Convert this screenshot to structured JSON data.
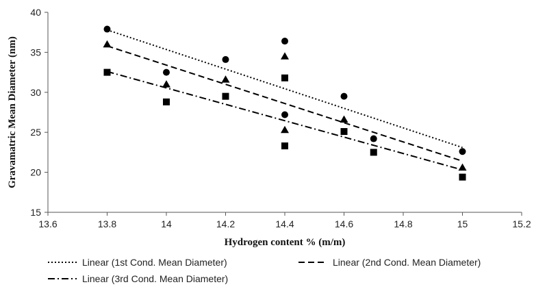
{
  "chart_data": {
    "type": "scatter",
    "title": "",
    "xlabel": "Hydrogen content % (m/m)",
    "ylabel": "Gravamatric Mean Diameter (nm)",
    "xlim": [
      13.6,
      15.2
    ],
    "ylim": [
      15,
      40
    ],
    "xticks": [
      "13.6",
      "13.8",
      "14",
      "14.2",
      "14.4",
      "14.6",
      "14.8",
      "15",
      "15.2"
    ],
    "yticks": [
      "15",
      "20",
      "25",
      "30",
      "35",
      "40"
    ],
    "grid": false,
    "legend_position": "bottom",
    "series": [
      {
        "marker": "circle",
        "color": "#000000",
        "points": [
          [
            13.8,
            37.9
          ],
          [
            14.0,
            32.5
          ],
          [
            14.2,
            34.1
          ],
          [
            14.4,
            36.4
          ],
          [
            14.4,
            27.2
          ],
          [
            14.6,
            29.5
          ],
          [
            14.7,
            24.2
          ],
          [
            15.0,
            22.6
          ]
        ]
      },
      {
        "marker": "triangle",
        "color": "#000000",
        "points": [
          [
            13.8,
            36.0
          ],
          [
            14.0,
            31.0
          ],
          [
            14.2,
            31.6
          ],
          [
            14.4,
            34.5
          ],
          [
            14.4,
            25.3
          ],
          [
            14.6,
            26.6
          ],
          [
            15.0,
            20.6
          ]
        ]
      },
      {
        "marker": "square",
        "color": "#000000",
        "points": [
          [
            13.8,
            32.5
          ],
          [
            14.0,
            28.8
          ],
          [
            14.2,
            29.5
          ],
          [
            14.4,
            31.8
          ],
          [
            14.4,
            23.3
          ],
          [
            14.6,
            25.1
          ],
          [
            14.7,
            22.5
          ],
          [
            15.0,
            19.4
          ]
        ]
      }
    ],
    "trendlines": [
      {
        "name": "Linear (1st Cond. Mean Diameter)",
        "dash": "dotted",
        "x": [
          13.8,
          15.0
        ],
        "y": [
          37.8,
          23.1
        ]
      },
      {
        "name": "Linear (2nd Cond. Mean Diameter)",
        "dash": "dashed",
        "x": [
          13.8,
          15.0
        ],
        "y": [
          35.8,
          21.4
        ]
      },
      {
        "name": "Linear (3rd Cond. Mean Diameter)",
        "dash": "dashdot",
        "x": [
          13.8,
          15.0
        ],
        "y": [
          32.6,
          20.3
        ]
      }
    ]
  }
}
